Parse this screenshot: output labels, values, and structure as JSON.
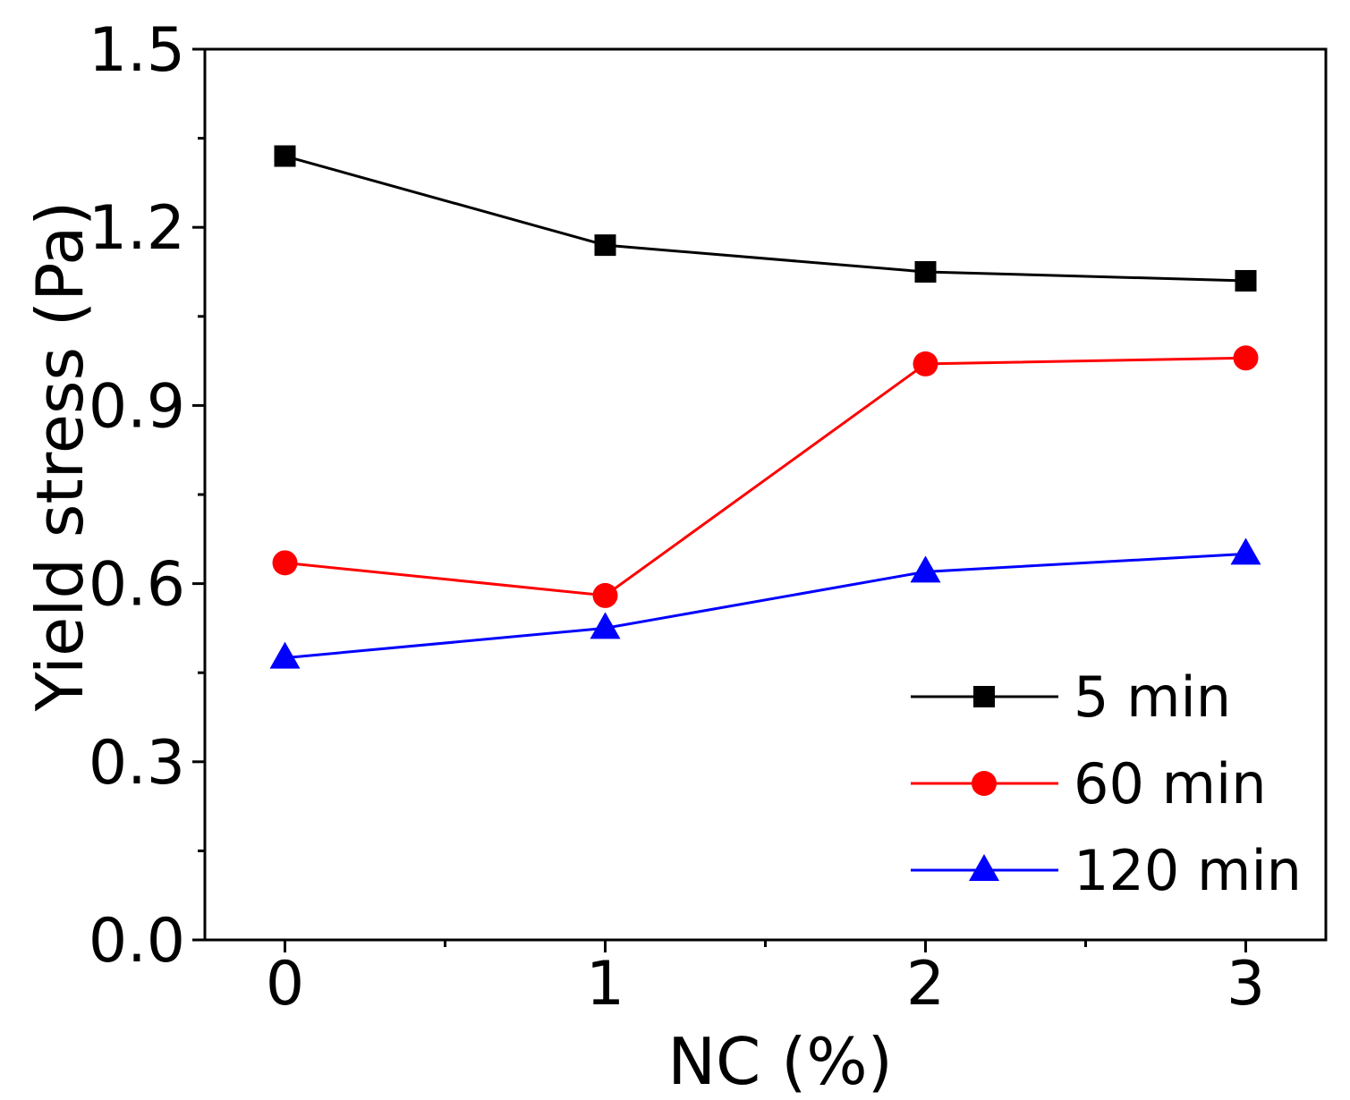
{
  "chart_data": {
    "type": "line",
    "title": "",
    "xlabel": "NC (%)",
    "ylabel": "Yield stress (Pa)",
    "x": [
      0,
      1,
      2,
      3
    ],
    "xlim": [
      -0.25,
      3.25
    ],
    "ylim": [
      0.0,
      1.5
    ],
    "xticks": [
      "0",
      "1",
      "2",
      "3"
    ],
    "yticks": [
      "0.0",
      "0.3",
      "0.6",
      "0.9",
      "1.2",
      "1.5"
    ],
    "grid": false,
    "legend_position": "bottom-right",
    "series": [
      {
        "name": "5 min",
        "color": "#000000",
        "marker": "square",
        "values": [
          1.32,
          1.17,
          1.125,
          1.11
        ]
      },
      {
        "name": "60 min",
        "color": "#ff0000",
        "marker": "circle",
        "values": [
          0.635,
          0.58,
          0.97,
          0.98
        ]
      },
      {
        "name": "120 min",
        "color": "#0000ff",
        "marker": "triangle",
        "values": [
          0.475,
          0.525,
          0.62,
          0.65
        ]
      }
    ]
  }
}
